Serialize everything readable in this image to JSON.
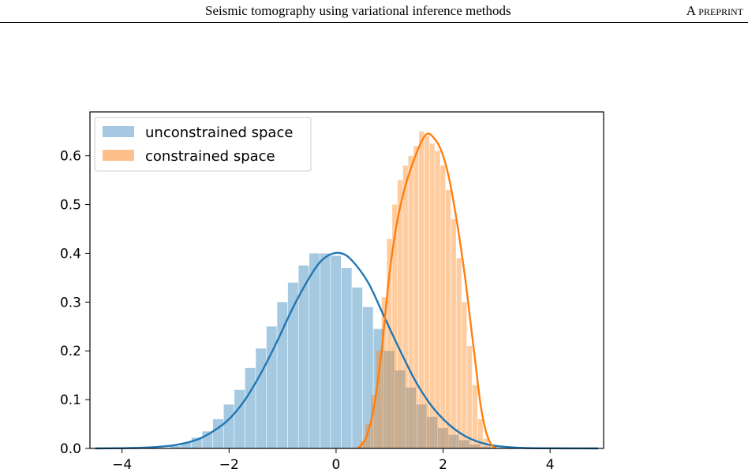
{
  "header": {
    "title": "Seismic tomography using variational inference methods",
    "label": "A preprint"
  },
  "chart_data": {
    "type": "area",
    "title": "",
    "xlabel": "",
    "ylabel": "",
    "xlim": [
      -4.6,
      5.0
    ],
    "ylim": [
      0.0,
      0.69
    ],
    "xticks": [
      -4,
      -2,
      0,
      2,
      4
    ],
    "xtick_labels": [
      "−4",
      "−2",
      "0",
      "2",
      "4"
    ],
    "yticks": [
      0.0,
      0.1,
      0.2,
      0.3,
      0.4,
      0.5,
      0.6
    ],
    "ytick_labels": [
      "0.0",
      "0.1",
      "0.2",
      "0.3",
      "0.4",
      "0.5",
      "0.6"
    ],
    "grid": false,
    "legend_position": "top-left",
    "series": [
      {
        "name": "unconstrained space",
        "kind": "histogram+density",
        "fill_color": "#a6c8e2",
        "line_color": "#1f77b4",
        "hist_x": [
          -3.0,
          -2.8,
          -2.6,
          -2.4,
          -2.2,
          -2.0,
          -1.8,
          -1.6,
          -1.4,
          -1.2,
          -1.0,
          -0.8,
          -0.6,
          -0.4,
          -0.2,
          0.0,
          0.2,
          0.4,
          0.6,
          0.8,
          1.0,
          1.2,
          1.4,
          1.6,
          1.8,
          2.0,
          2.2,
          2.4,
          2.6,
          2.8
        ],
        "hist_values": [
          0.005,
          0.012,
          0.022,
          0.035,
          0.06,
          0.09,
          0.12,
          0.165,
          0.205,
          0.25,
          0.3,
          0.34,
          0.375,
          0.4,
          0.4,
          0.395,
          0.37,
          0.33,
          0.29,
          0.245,
          0.2,
          0.16,
          0.125,
          0.09,
          0.065,
          0.042,
          0.028,
          0.017,
          0.008,
          0.004
        ],
        "kde_x": [
          -4.5,
          -4.0,
          -3.5,
          -3.0,
          -2.6,
          -2.3,
          -2.0,
          -1.7,
          -1.4,
          -1.1,
          -0.8,
          -0.5,
          -0.3,
          -0.1,
          0.1,
          0.3,
          0.6,
          0.9,
          1.2,
          1.5,
          1.8,
          2.1,
          2.4,
          2.7,
          3.0,
          3.5,
          4.0,
          4.5,
          4.9
        ],
        "kde_values": [
          0.0,
          0.0005,
          0.002,
          0.007,
          0.018,
          0.035,
          0.06,
          0.1,
          0.155,
          0.22,
          0.29,
          0.35,
          0.382,
          0.398,
          0.4,
          0.385,
          0.34,
          0.27,
          0.2,
          0.135,
          0.085,
          0.05,
          0.026,
          0.012,
          0.005,
          0.001,
          0.0003,
          0.0001,
          0.0
        ]
      },
      {
        "name": "constrained space",
        "kind": "histogram+density",
        "fill_color": "#ffbf8a",
        "line_color": "#ff7f0e",
        "hist_x": [
          0.5,
          0.6,
          0.7,
          0.8,
          0.9,
          1.0,
          1.1,
          1.2,
          1.3,
          1.4,
          1.5,
          1.6,
          1.7,
          1.8,
          1.9,
          2.0,
          2.1,
          2.2,
          2.3,
          2.4,
          2.5,
          2.6,
          2.7,
          2.8,
          2.9
        ],
        "hist_values": [
          0.015,
          0.05,
          0.11,
          0.2,
          0.31,
          0.43,
          0.5,
          0.55,
          0.58,
          0.6,
          0.62,
          0.65,
          0.64,
          0.625,
          0.61,
          0.58,
          0.53,
          0.47,
          0.39,
          0.3,
          0.21,
          0.13,
          0.06,
          0.02,
          0.005
        ],
        "kde_x": [
          0.4,
          0.55,
          0.7,
          0.85,
          1.0,
          1.15,
          1.3,
          1.45,
          1.6,
          1.7,
          1.8,
          1.95,
          2.1,
          2.25,
          2.4,
          2.5,
          2.6,
          2.7,
          2.8,
          2.9,
          3.0
        ],
        "kde_values": [
          0.0,
          0.02,
          0.08,
          0.2,
          0.36,
          0.47,
          0.54,
          0.59,
          0.63,
          0.645,
          0.64,
          0.615,
          0.56,
          0.47,
          0.36,
          0.27,
          0.18,
          0.09,
          0.035,
          0.008,
          0.0
        ]
      }
    ]
  }
}
